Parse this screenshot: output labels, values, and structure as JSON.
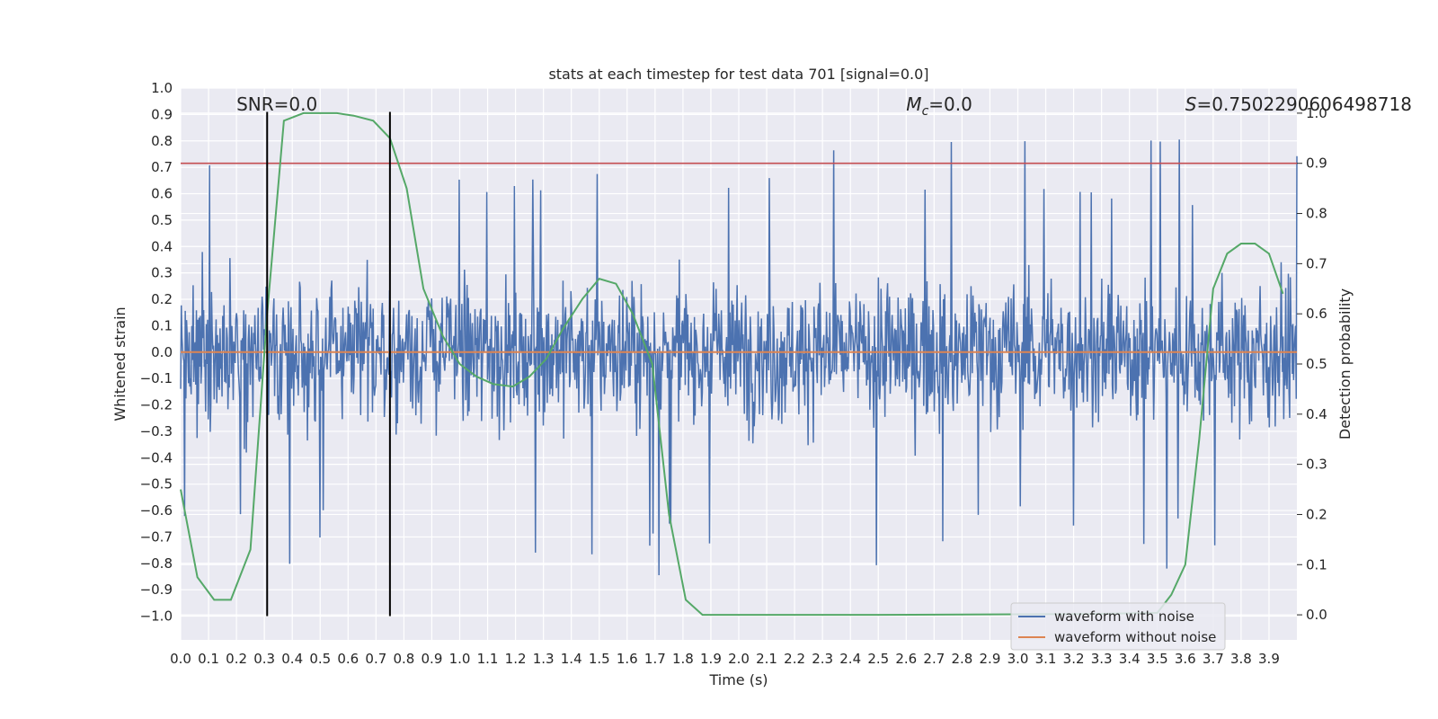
{
  "chart_data": {
    "type": "line",
    "title": "stats at each timestep for test data 701 [signal=0.0]",
    "xlabel": "Time (s)",
    "ylabel": "Whitened strain",
    "y2label": "Detection probability",
    "xlim": [
      0.0,
      4.0
    ],
    "ylim": [
      -1.09,
      1.0
    ],
    "y2lim": [
      -0.05,
      1.05
    ],
    "xticks": [
      0.0,
      0.1,
      0.2,
      0.3,
      0.4,
      0.5,
      0.6,
      0.7,
      0.8,
      0.9,
      1.0,
      1.1,
      1.2,
      1.3,
      1.4,
      1.5,
      1.6,
      1.7,
      1.8,
      1.9,
      2.0,
      2.1,
      2.2,
      2.3,
      2.4,
      2.5,
      2.6,
      2.7,
      2.8,
      2.9,
      3.0,
      3.1,
      3.2,
      3.3,
      3.4,
      3.5,
      3.6,
      3.7,
      3.8,
      3.9
    ],
    "yticks": [
      -1.0,
      -0.9,
      -0.8,
      -0.7,
      -0.6,
      -0.5,
      -0.4,
      -0.3,
      -0.2,
      -0.1,
      0.0,
      0.1,
      0.2,
      0.3,
      0.4,
      0.5,
      0.6,
      0.7,
      0.8,
      0.9,
      1.0
    ],
    "y2ticks": [
      0.0,
      0.1,
      0.2,
      0.3,
      0.4,
      0.5,
      0.6,
      0.7,
      0.8,
      0.9,
      1.0
    ],
    "grid": true,
    "legend_position": "lower-right",
    "annotations": [
      {
        "text": "SNR=0.0",
        "x": 0.2
      },
      {
        "text_main": "M",
        "text_sub": "c",
        "text_rest": "=0.0",
        "x": 2.6
      },
      {
        "text_main": "S",
        "text_rest": "=0.7502290606498718",
        "x": 3.6
      }
    ],
    "series": [
      {
        "name": "waveform with noise",
        "color": "#4c72b0",
        "kind": "noise",
        "x_start": 0.0,
        "x_end": 4.0,
        "typical_range": [
          -0.5,
          0.6
        ],
        "extremes": [
          -0.9,
          0.91
        ]
      },
      {
        "name": "waveform without noise",
        "color": "#dd8452",
        "kind": "constant",
        "y": 0.0
      },
      {
        "color": "#55a868",
        "axis": "right",
        "x": [
          0.0,
          0.06,
          0.12,
          0.18,
          0.25,
          0.31,
          0.37,
          0.44,
          0.5,
          0.56,
          0.62,
          0.69,
          0.75,
          0.81,
          0.87,
          0.94,
          1.0,
          1.06,
          1.12,
          1.19,
          1.25,
          1.31,
          1.37,
          1.44,
          1.5,
          1.56,
          1.62,
          1.69,
          1.75,
          1.81,
          1.87,
          1.94,
          2.0,
          2.5,
          3.0,
          3.3,
          3.4,
          3.5,
          3.55,
          3.6,
          3.65,
          3.7,
          3.75,
          3.8,
          3.85,
          3.9,
          3.95
        ],
        "values": [
          0.25,
          0.075,
          0.03,
          0.03,
          0.13,
          0.6,
          0.985,
          1.0,
          1.0,
          1.0,
          0.995,
          0.985,
          0.95,
          0.85,
          0.65,
          0.555,
          0.5,
          0.475,
          0.46,
          0.455,
          0.475,
          0.51,
          0.57,
          0.63,
          0.67,
          0.66,
          0.6,
          0.5,
          0.2,
          0.03,
          0.0,
          0.0,
          0.0,
          0.0,
          0.001,
          0.002,
          0.003,
          0.004,
          0.04,
          0.1,
          0.35,
          0.65,
          0.72,
          0.74,
          0.74,
          0.72,
          0.64
        ]
      },
      {
        "color": "#c44e52",
        "kind": "hline",
        "axis": "right",
        "y": 0.9
      },
      {
        "color": "#000000",
        "kind": "vlines",
        "x": [
          0.31,
          0.75
        ],
        "y_range": [
          -1.0,
          0.91
        ]
      }
    ]
  }
}
